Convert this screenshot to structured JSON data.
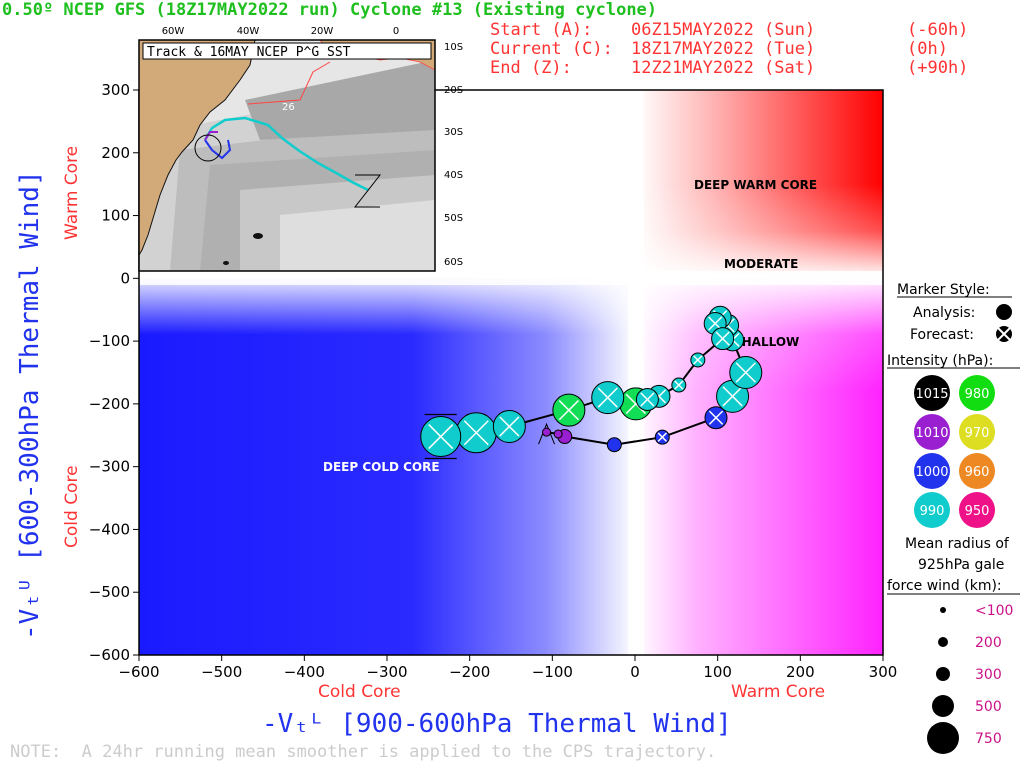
{
  "header": {
    "title": "0.50º NCEP GFS (18Z17MAY2022 run) Cyclone #13 (Existing cyclone)",
    "start_label": "Start (A):",
    "start_date": "06Z15MAY2022 (Sun)",
    "start_offset": "(-60h)",
    "current_label": "Current (C):",
    "current_date": "18Z17MAY2022 (Tue)",
    "current_offset": "(0h)",
    "end_label": "End (Z):",
    "end_date": "12Z21MAY2022 (Sat)",
    "end_offset": "(+90h)"
  },
  "note": "NOTE:  A 24hr running mean smoother is applied to the CPS trajectory.",
  "inset": {
    "title": "Track & 16MAY NCEP P^G SST",
    "lon_ticks": [
      "60W",
      "40W",
      "20W",
      "0"
    ],
    "lat_ticks": [
      "10S",
      "20S",
      "30S",
      "40S",
      "50S",
      "60S"
    ],
    "sst_label": "26"
  },
  "chart_data": {
    "type": "scatter",
    "xlabel": "-Vₜᴸ [900-600hPa Thermal Wind]",
    "ylabel": "-Vₜᵁ [600-300hPa Thermal Wind]",
    "x_sub_left": "Cold Core",
    "x_sub_right": "Warm Core",
    "y_sub_bottom": "Cold Core",
    "y_sub_top": "Warm Core",
    "xlim": [
      -600,
      300
    ],
    "ylim": [
      -600,
      300
    ],
    "xticks": [
      -600,
      -500,
      -400,
      -300,
      -200,
      -100,
      0,
      100,
      200,
      300
    ],
    "yticks": [
      -600,
      -500,
      -400,
      -300,
      -200,
      -100,
      0,
      100,
      200,
      300
    ],
    "regions": [
      "DEEP WARM CORE",
      "MODERATE",
      "SHALLOW",
      "DEEP COLD CORE"
    ],
    "points": [
      {
        "x": -107,
        "y": -245,
        "intensity": 1010,
        "color": "#9a1fd0",
        "size": "100",
        "kind": "analysis"
      },
      {
        "x": -93,
        "y": -248,
        "intensity": 1010,
        "color": "#9a1fd0",
        "size": "100",
        "kind": "analysis"
      },
      {
        "x": -85,
        "y": -252,
        "intensity": 1010,
        "color": "#9a1fd0",
        "size": "200",
        "kind": "analysis"
      },
      {
        "x": -25,
        "y": -265,
        "intensity": 1000,
        "color": "#2233ee",
        "size": "200",
        "kind": "analysis"
      },
      {
        "x": 33,
        "y": -253,
        "intensity": 1000,
        "color": "#2233ee",
        "size": "200",
        "kind": "forecast"
      },
      {
        "x": 98,
        "y": -222,
        "intensity": 1000,
        "color": "#2233ee",
        "size": "300",
        "kind": "forecast"
      },
      {
        "x": 118,
        "y": -188,
        "intensity": 990,
        "color": "#11cccc",
        "size": "500",
        "kind": "forecast"
      },
      {
        "x": 134,
        "y": -150,
        "intensity": 990,
        "color": "#11cccc",
        "size": "500",
        "kind": "forecast"
      },
      {
        "x": 118,
        "y": -98,
        "intensity": 990,
        "color": "#11cccc",
        "size": "300",
        "kind": "forecast"
      },
      {
        "x": 112,
        "y": -75,
        "intensity": 990,
        "color": "#11cccc",
        "size": "300",
        "kind": "forecast"
      },
      {
        "x": 103,
        "y": -62,
        "intensity": 990,
        "color": "#11cccc",
        "size": "300",
        "kind": "forecast"
      },
      {
        "x": 97,
        "y": -72,
        "intensity": 990,
        "color": "#11cccc",
        "size": "300",
        "kind": "forecast"
      },
      {
        "x": 106,
        "y": -96,
        "intensity": 990,
        "color": "#11cccc",
        "size": "300",
        "kind": "forecast"
      },
      {
        "x": 76,
        "y": -130,
        "intensity": 990,
        "color": "#11cccc",
        "size": "200",
        "kind": "forecast"
      },
      {
        "x": 53,
        "y": -170,
        "intensity": 990,
        "color": "#11cccc",
        "size": "200",
        "kind": "forecast"
      },
      {
        "x": 29,
        "y": -188,
        "intensity": 990,
        "color": "#11cccc",
        "size": "300",
        "kind": "forecast"
      },
      {
        "x": 15,
        "y": -193,
        "intensity": 990,
        "color": "#11cccc",
        "size": "300",
        "kind": "forecast"
      },
      {
        "x": 1,
        "y": -200,
        "intensity": 980,
        "color": "#11dd55",
        "size": "500",
        "kind": "forecast"
      },
      {
        "x": -33,
        "y": -190,
        "intensity": 990,
        "color": "#11cccc",
        "size": "500",
        "kind": "forecast"
      },
      {
        "x": -80,
        "y": -210,
        "intensity": 980,
        "color": "#11dd55",
        "size": "500",
        "kind": "forecast"
      },
      {
        "x": -152,
        "y": -236,
        "intensity": 990,
        "color": "#11cccc",
        "size": "500",
        "kind": "forecast"
      },
      {
        "x": -192,
        "y": -246,
        "intensity": 990,
        "color": "#11cccc",
        "size": "750",
        "kind": "forecast"
      },
      {
        "x": -235,
        "y": -252,
        "intensity": 990,
        "color": "#11cccc",
        "size": "750",
        "kind": "forecast"
      }
    ]
  },
  "legend": {
    "marker_style_title": "Marker Style:",
    "analysis_label": "Analysis:",
    "forecast_label": "Forecast:",
    "intensity_title": "Intensity (hPa):",
    "intensities": [
      {
        "value": "1015",
        "color": "#000000",
        "text_color": "#ffffff"
      },
      {
        "value": "980",
        "color": "#11dd11",
        "text_color": "#ffffff"
      },
      {
        "value": "1010",
        "color": "#9a1fd0",
        "text_color": "#ffffff"
      },
      {
        "value": "970",
        "color": "#dddd22",
        "text_color": "#ffffff"
      },
      {
        "value": "1000",
        "color": "#2233ee",
        "text_color": "#ffffff"
      },
      {
        "value": "960",
        "color": "#ee8822",
        "text_color": "#ffffff"
      },
      {
        "value": "990",
        "color": "#11cccc",
        "text_color": "#ffffff"
      },
      {
        "value": "950",
        "color": "#ee1188",
        "text_color": "#ffffff"
      }
    ],
    "radius_title_1": "Mean radius of",
    "radius_title_2": "925hPa gale",
    "radius_title_3": "force wind (km):",
    "sizes": [
      "<100",
      "200",
      "300",
      "500",
      "750"
    ]
  }
}
